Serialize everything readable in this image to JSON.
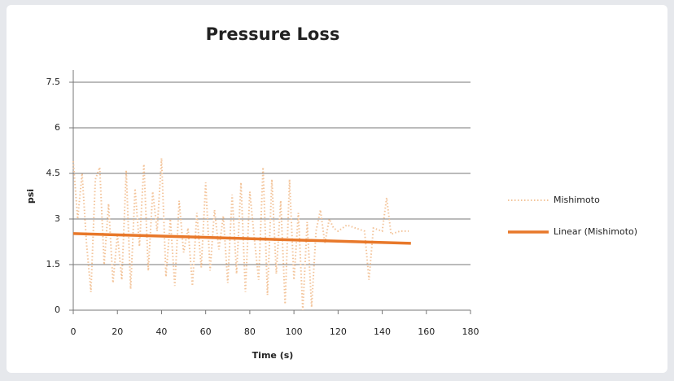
{
  "chart_data": {
    "type": "line",
    "title": "Pressure Loss",
    "x_label": "Time (s)",
    "y_label": "psi",
    "xlim": [
      0,
      180
    ],
    "xticks": [
      0,
      20,
      40,
      60,
      80,
      100,
      120,
      140,
      160,
      180
    ],
    "ylim": [
      0,
      7.5
    ],
    "yticks": [
      0,
      1.5,
      3,
      4.5,
      6,
      7.5
    ],
    "grid": true,
    "legend": "right",
    "series": [
      {
        "name": "Mishimoto",
        "color": "#f3c49a",
        "style": "dotted",
        "x": [
          0,
          2,
          4,
          6,
          8,
          10,
          12,
          14,
          16,
          18,
          20,
          22,
          24,
          26,
          28,
          30,
          32,
          34,
          36,
          38,
          40,
          42,
          44,
          46,
          48,
          50,
          52,
          54,
          56,
          58,
          60,
          62,
          64,
          66,
          68,
          70,
          72,
          74,
          76,
          78,
          80,
          82,
          84,
          86,
          88,
          90,
          92,
          94,
          96,
          98,
          100,
          102,
          104,
          106,
          108,
          110,
          112,
          114,
          116,
          118,
          120,
          124,
          128,
          132,
          134,
          136,
          140,
          142,
          144,
          148,
          152
        ],
        "values": [
          4.9,
          3.0,
          4.5,
          2.2,
          0.6,
          4.3,
          4.7,
          1.5,
          3.5,
          0.9,
          2.5,
          1.0,
          4.6,
          0.7,
          4.0,
          2.1,
          4.8,
          1.3,
          3.9,
          2.6,
          5.0,
          1.1,
          3.0,
          0.8,
          3.6,
          1.9,
          2.7,
          0.8,
          3.2,
          1.4,
          4.2,
          1.3,
          3.3,
          2.0,
          3.1,
          0.9,
          3.8,
          1.2,
          4.2,
          0.6,
          3.9,
          2.4,
          1.0,
          4.7,
          0.5,
          4.3,
          1.2,
          3.6,
          0.2,
          4.3,
          1.0,
          3.2,
          0.0,
          2.9,
          0.1,
          2.6,
          3.3,
          2.2,
          3.0,
          2.7,
          2.6,
          2.8,
          2.7,
          2.6,
          1.0,
          2.7,
          2.6,
          3.7,
          2.5,
          2.6,
          2.6
        ]
      },
      {
        "name": "Linear (Mishimoto)",
        "color": "#e8782a",
        "style": "solid",
        "x": [
          0,
          153
        ],
        "values": [
          2.52,
          2.2
        ]
      }
    ]
  }
}
